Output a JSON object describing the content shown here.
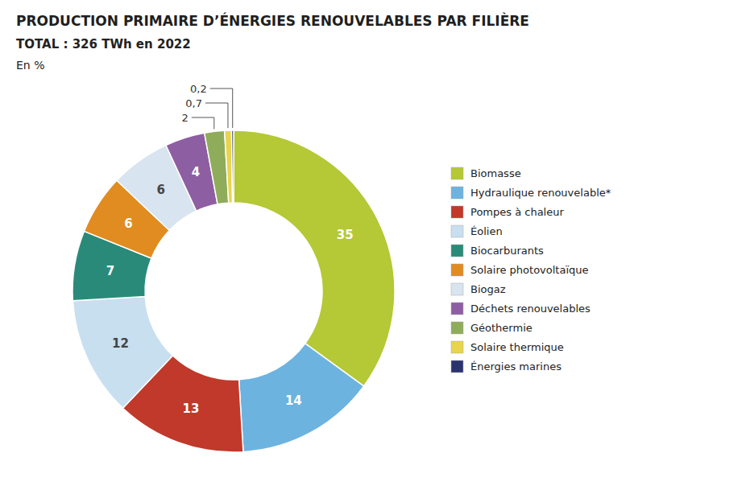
{
  "chart_data": {
    "type": "donut",
    "title": "PRODUCTION PRIMAIRE D’ÉNERGIES RENOUVELABLES PAR FILIÈRE",
    "subtitle": "TOTAL : 326 TWh en 2022",
    "ylabel": "En %",
    "categories": [
      "Biomasse",
      "Hydraulique renouvelable*",
      "Pompes à chaleur",
      "Éolien",
      "Biocarburants",
      "Solaire photovoltaïque",
      "Biogaz",
      "Déchets renouvelables",
      "Géothermie",
      "Solaire thermique",
      "Énergies marines"
    ],
    "values": [
      35,
      14,
      13,
      12,
      7,
      6,
      6,
      4,
      2,
      0.7,
      0.2
    ],
    "value_labels": [
      "35",
      "14",
      "13",
      "12",
      "7",
      "6",
      "6",
      "4",
      "2",
      "0,7",
      "0,2"
    ],
    "colors": [
      "#b5c835",
      "#6db3e0",
      "#c0392b",
      "#c8dff0",
      "#2a8a7a",
      "#e08c20",
      "#d8e4f0",
      "#8e5ea2",
      "#8fac5a",
      "#e8d44d",
      "#2c3470"
    ],
    "data_labels": true,
    "legend": "right"
  }
}
